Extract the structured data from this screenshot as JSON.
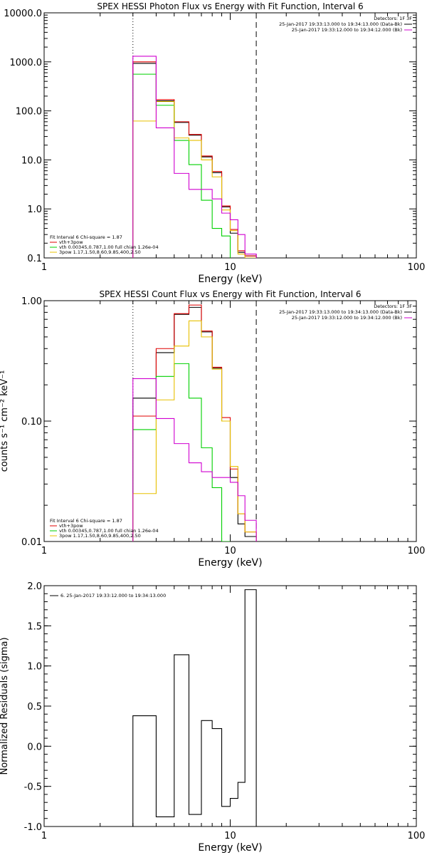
{
  "page": {
    "background": "#ffffff",
    "foreground": "#000000"
  },
  "chart_data": [
    {
      "type": "line",
      "step": true,
      "title": "SPEX HESSI Photon Flux vs Energy with Fit Function, Interval 6",
      "xlabel": "Energy (keV)",
      "ylabel": "",
      "xscale": "log",
      "yscale": "log",
      "xlim": [
        1,
        100
      ],
      "ylim": [
        0.1,
        10000
      ],
      "x_ticks": [
        1,
        10,
        100
      ],
      "x_tick_labels": [
        "1",
        "10",
        "100"
      ],
      "y_ticks": [
        0.1,
        1,
        10,
        100,
        1000,
        10000
      ],
      "y_tick_labels": [
        "0.1",
        "1.0",
        "10.0",
        "100.0",
        "1000.0",
        "10000.0"
      ],
      "vlines": [
        {
          "x": 3.0,
          "style": "dotted",
          "color": "#000000"
        },
        {
          "x": 13.8,
          "style": "dashed",
          "color": "#000000"
        }
      ],
      "info_box": {
        "position": "top-right",
        "lines": [
          {
            "text": "Detectors: 1F 3F",
            "color": "#000000"
          },
          {
            "text": "25-Jan-2017 19:33:13.000 to 19:34:13.000 (Data-Bk)",
            "color": "#000000",
            "swatch": "#000000"
          },
          {
            "text": "25-Jan-2017 19:33:12.000 to 19:34:12.000 (Bk)",
            "color": "#000000",
            "swatch": "#d000d0"
          }
        ]
      },
      "legend": {
        "position": "bottom-left",
        "header": "Fit Interval  6    Chi-square = 1.87",
        "entries": [
          {
            "label": "vth+3pow",
            "color": "#e00000"
          },
          {
            "label": "vth 0.00345,0.787,1.00   full chian 1.26e-04",
            "color": "#00d000"
          },
          {
            "label": "3pow 1.17,1.50,8.60,9.85,400,2.50",
            "color": "#e8c000"
          }
        ]
      },
      "series": [
        {
          "color": "#000000",
          "edges": [
            3.0,
            4.0,
            5.0,
            6.0,
            7.0,
            8.0,
            9.0,
            10.0,
            11.0,
            12.0,
            13.8
          ],
          "values": [
            930,
            160,
            58,
            32,
            11.5,
            5.5,
            1.1,
            0.32,
            0.13,
            0.11
          ]
        },
        {
          "color": "#e00000",
          "edges": [
            3.0,
            4.0,
            5.0,
            6.0,
            7.0,
            8.0,
            9.0,
            10.0,
            11.0,
            12.0,
            13.8
          ],
          "values": [
            1000,
            170,
            60,
            33,
            12,
            5.8,
            1.15,
            0.38,
            0.14,
            0.11
          ]
        },
        {
          "color": "#00d000",
          "edges": [
            3.0,
            4.0,
            5.0,
            6.0,
            7.0,
            8.0,
            9.0,
            10.0
          ],
          "values": [
            560,
            130,
            25,
            8,
            1.5,
            0.4,
            0.28
          ]
        },
        {
          "color": "#e8c000",
          "edges": [
            3.0,
            4.0,
            5.0,
            6.0,
            7.0,
            8.0,
            9.0,
            10.0,
            11.0,
            12.0,
            13.8
          ],
          "values": [
            62,
            155,
            28,
            25,
            10,
            4.5,
            0.95,
            0.36,
            0.12,
            0.1
          ]
        },
        {
          "color": "#d000d0",
          "edges": [
            3.0,
            4.0,
            5.0,
            6.0,
            7.0,
            8.0,
            9.0,
            10.0,
            11.0,
            12.0,
            13.8
          ],
          "values": [
            1300,
            45,
            5.3,
            2.5,
            2.5,
            1.6,
            0.82,
            0.6,
            0.3,
            0.12
          ]
        }
      ]
    },
    {
      "type": "line",
      "step": true,
      "title": "SPEX HESSI Count Flux vs Energy with Fit Function, Interval 6",
      "xlabel": "Energy (keV)",
      "ylabel": "counts s⁻¹ cm⁻² keV⁻¹",
      "xscale": "log",
      "yscale": "log",
      "xlim": [
        1,
        100
      ],
      "ylim": [
        0.01,
        1.0
      ],
      "x_ticks": [
        1,
        10,
        100
      ],
      "x_tick_labels": [
        "1",
        "10",
        "100"
      ],
      "y_ticks": [
        0.01,
        0.1,
        1.0
      ],
      "y_tick_labels": [
        "0.01",
        "0.10",
        "1.00"
      ],
      "vlines": [
        {
          "x": 3.0,
          "style": "dotted",
          "color": "#000000"
        },
        {
          "x": 13.8,
          "style": "dashed",
          "color": "#000000"
        }
      ],
      "info_box": {
        "position": "top-right",
        "lines": [
          {
            "text": "Detectors: 1F 3F",
            "color": "#000000"
          },
          {
            "text": "25-Jan-2017 19:33:13.000 to 19:34:13.000 (Data-Bk)",
            "color": "#000000",
            "swatch": "#000000"
          },
          {
            "text": "25-Jan-2017 19:33:12.000 to 19:34:12.000 (Bk)",
            "color": "#000000",
            "swatch": "#d000d0"
          }
        ]
      },
      "legend": {
        "position": "bottom-left",
        "header": "Fit Interval  6    Chi-square = 1.87",
        "entries": [
          {
            "label": "vth+3pow",
            "color": "#e00000"
          },
          {
            "label": "vth 0.00345,0.787,1.00   full chian 1.26e-04",
            "color": "#00d000"
          },
          {
            "label": "3pow 1.17,1.50,8.60,9.85,400,2.50",
            "color": "#e8c000"
          }
        ]
      },
      "series": [
        {
          "color": "#000000",
          "edges": [
            3.0,
            4.0,
            5.0,
            6.0,
            7.0,
            8.0,
            9.0,
            10.0,
            11.0,
            12.0,
            13.8
          ],
          "values": [
            0.155,
            0.37,
            0.77,
            0.88,
            0.55,
            0.275,
            0.1,
            0.034,
            0.014,
            0.011
          ]
        },
        {
          "color": "#e00000",
          "edges": [
            3.0,
            4.0,
            5.0,
            6.0,
            7.0,
            8.0,
            9.0,
            10.0,
            11.0,
            12.0,
            13.8
          ],
          "values": [
            0.11,
            0.4,
            0.78,
            0.92,
            0.56,
            0.28,
            0.107,
            0.04,
            0.017,
            0.012
          ]
        },
        {
          "color": "#00d000",
          "edges": [
            3.0,
            4.0,
            5.0,
            6.0,
            7.0,
            8.0,
            9.0,
            10.0
          ],
          "values": [
            0.085,
            0.235,
            0.3,
            0.155,
            0.06,
            0.028,
            0.01
          ]
        },
        {
          "color": "#e8c000",
          "edges": [
            3.0,
            4.0,
            5.0,
            6.0,
            7.0,
            8.0,
            9.0,
            10.0,
            11.0,
            12.0,
            13.8
          ],
          "values": [
            0.025,
            0.15,
            0.42,
            0.68,
            0.5,
            0.27,
            0.1,
            0.042,
            0.017,
            0.012
          ]
        },
        {
          "color": "#d000d0",
          "edges": [
            3.0,
            4.0,
            5.0,
            6.0,
            7.0,
            8.0,
            9.0,
            10.0,
            11.0,
            12.0,
            13.8
          ],
          "values": [
            0.225,
            0.105,
            0.065,
            0.045,
            0.038,
            0.034,
            0.034,
            0.031,
            0.024,
            0.015
          ]
        }
      ]
    },
    {
      "type": "line",
      "step": true,
      "title": "",
      "xlabel": "Energy (keV)",
      "ylabel": "Normalized Residuals (sigma)",
      "xscale": "log",
      "yscale": "linear",
      "xlim": [
        1,
        100
      ],
      "ylim": [
        -1.0,
        2.0
      ],
      "x_ticks": [
        1,
        10,
        100
      ],
      "x_tick_labels": [
        "1",
        "10",
        "100"
      ],
      "y_ticks": [
        -1.0,
        -0.5,
        0.0,
        0.5,
        1.0,
        1.5,
        2.0
      ],
      "y_tick_labels": [
        "-1.0",
        "-0.5",
        "0.0",
        "0.5",
        "1.0",
        "1.5",
        "2.0"
      ],
      "legend": {
        "position": "top-left",
        "entries": [
          {
            "label": "6. 25-Jan-2017 19:33:12.000 to 19:34:13.000",
            "color": "#000000"
          }
        ]
      },
      "series": [
        {
          "color": "#000000",
          "edges": [
            3.0,
            4.0,
            5.0,
            6.0,
            7.0,
            8.0,
            9.0,
            10.0,
            11.0,
            12.0,
            13.8
          ],
          "values": [
            0.38,
            -0.88,
            1.14,
            -0.85,
            0.32,
            0.22,
            -0.75,
            -0.65,
            -0.45,
            1.95
          ]
        }
      ]
    }
  ]
}
